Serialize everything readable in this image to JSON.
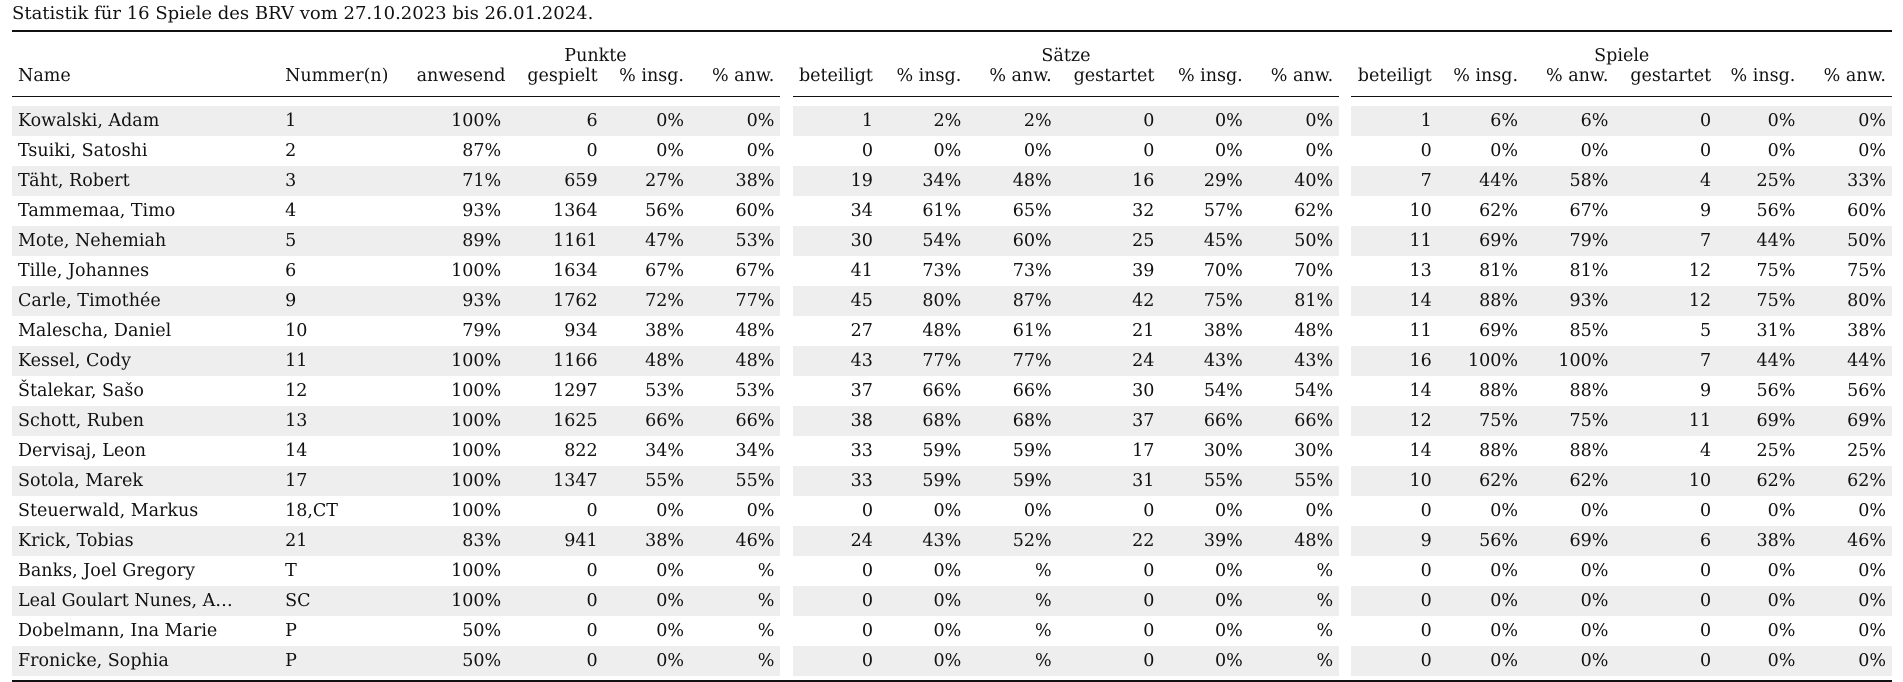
{
  "caption": "Statistik für 16 Spiele des BRV vom 27.10.2023 bis 26.01.2024.",
  "groups": {
    "punkte": "Punkte",
    "saetze": "Sätze",
    "spiele": "Spiele"
  },
  "columns": {
    "name": "Name",
    "nummer": "Nummer(n)",
    "punkte": [
      "anwesend",
      "gespielt",
      "% insg.",
      "% anw."
    ],
    "saetze": [
      "beteiligt",
      "% insg.",
      "% anw.",
      "gestartet",
      "% insg.",
      "% anw."
    ],
    "spiele": [
      "beteiligt",
      "% insg.",
      "% anw.",
      "gestartet",
      "% insg.",
      "% anw."
    ]
  },
  "rows": [
    [
      "Kowalski, Adam",
      "1",
      "100%",
      "6",
      "0%",
      "0%",
      "1",
      "2%",
      "2%",
      "0",
      "0%",
      "0%",
      "1",
      "6%",
      "6%",
      "0",
      "0%",
      "0%"
    ],
    [
      "Tsuiki, Satoshi",
      "2",
      "87%",
      "0",
      "0%",
      "0%",
      "0",
      "0%",
      "0%",
      "0",
      "0%",
      "0%",
      "0",
      "0%",
      "0%",
      "0",
      "0%",
      "0%"
    ],
    [
      "Täht, Robert",
      "3",
      "71%",
      "659",
      "27%",
      "38%",
      "19",
      "34%",
      "48%",
      "16",
      "29%",
      "40%",
      "7",
      "44%",
      "58%",
      "4",
      "25%",
      "33%"
    ],
    [
      "Tammemaa, Timo",
      "4",
      "93%",
      "1364",
      "56%",
      "60%",
      "34",
      "61%",
      "65%",
      "32",
      "57%",
      "62%",
      "10",
      "62%",
      "67%",
      "9",
      "56%",
      "60%"
    ],
    [
      "Mote, Nehemiah",
      "5",
      "89%",
      "1161",
      "47%",
      "53%",
      "30",
      "54%",
      "60%",
      "25",
      "45%",
      "50%",
      "11",
      "69%",
      "79%",
      "7",
      "44%",
      "50%"
    ],
    [
      "Tille, Johannes",
      "6",
      "100%",
      "1634",
      "67%",
      "67%",
      "41",
      "73%",
      "73%",
      "39",
      "70%",
      "70%",
      "13",
      "81%",
      "81%",
      "12",
      "75%",
      "75%"
    ],
    [
      "Carle, Timothée",
      "9",
      "93%",
      "1762",
      "72%",
      "77%",
      "45",
      "80%",
      "87%",
      "42",
      "75%",
      "81%",
      "14",
      "88%",
      "93%",
      "12",
      "75%",
      "80%"
    ],
    [
      "Malescha, Daniel",
      "10",
      "79%",
      "934",
      "38%",
      "48%",
      "27",
      "48%",
      "61%",
      "21",
      "38%",
      "48%",
      "11",
      "69%",
      "85%",
      "5",
      "31%",
      "38%"
    ],
    [
      "Kessel, Cody",
      "11",
      "100%",
      "1166",
      "48%",
      "48%",
      "43",
      "77%",
      "77%",
      "24",
      "43%",
      "43%",
      "16",
      "100%",
      "100%",
      "7",
      "44%",
      "44%"
    ],
    [
      "Štalekar, Sašo",
      "12",
      "100%",
      "1297",
      "53%",
      "53%",
      "37",
      "66%",
      "66%",
      "30",
      "54%",
      "54%",
      "14",
      "88%",
      "88%",
      "9",
      "56%",
      "56%"
    ],
    [
      "Schott, Ruben",
      "13",
      "100%",
      "1625",
      "66%",
      "66%",
      "38",
      "68%",
      "68%",
      "37",
      "66%",
      "66%",
      "12",
      "75%",
      "75%",
      "11",
      "69%",
      "69%"
    ],
    [
      "Dervisaj, Leon",
      "14",
      "100%",
      "822",
      "34%",
      "34%",
      "33",
      "59%",
      "59%",
      "17",
      "30%",
      "30%",
      "14",
      "88%",
      "88%",
      "4",
      "25%",
      "25%"
    ],
    [
      "Sotola, Marek",
      "17",
      "100%",
      "1347",
      "55%",
      "55%",
      "33",
      "59%",
      "59%",
      "31",
      "55%",
      "55%",
      "10",
      "62%",
      "62%",
      "10",
      "62%",
      "62%"
    ],
    [
      "Steuerwald, Markus",
      "18,CT",
      "100%",
      "0",
      "0%",
      "0%",
      "0",
      "0%",
      "0%",
      "0",
      "0%",
      "0%",
      "0",
      "0%",
      "0%",
      "0",
      "0%",
      "0%"
    ],
    [
      "Krick, Tobias",
      "21",
      "83%",
      "941",
      "38%",
      "46%",
      "24",
      "43%",
      "52%",
      "22",
      "39%",
      "48%",
      "9",
      "56%",
      "69%",
      "6",
      "38%",
      "46%"
    ],
    [
      "Banks, Joel Gregory",
      "T",
      "100%",
      "0",
      "0%",
      "%",
      "0",
      "0%",
      "%",
      "0",
      "0%",
      "%",
      "0",
      "0%",
      "0%",
      "0",
      "0%",
      "0%"
    ],
    [
      "Leal Goulart Nunes, A…",
      "SC",
      "100%",
      "0",
      "0%",
      "%",
      "0",
      "0%",
      "%",
      "0",
      "0%",
      "%",
      "0",
      "0%",
      "0%",
      "0",
      "0%",
      "0%"
    ],
    [
      "Dobelmann, Ina Marie",
      "P",
      "50%",
      "0",
      "0%",
      "%",
      "0",
      "0%",
      "%",
      "0",
      "0%",
      "%",
      "0",
      "0%",
      "0%",
      "0",
      "0%",
      "0%"
    ],
    [
      "Fronicke, Sophia",
      "P",
      "50%",
      "0",
      "0%",
      "%",
      "0",
      "0%",
      "%",
      "0",
      "0%",
      "%",
      "0",
      "0%",
      "0%",
      "0",
      "0%",
      "0%"
    ]
  ]
}
